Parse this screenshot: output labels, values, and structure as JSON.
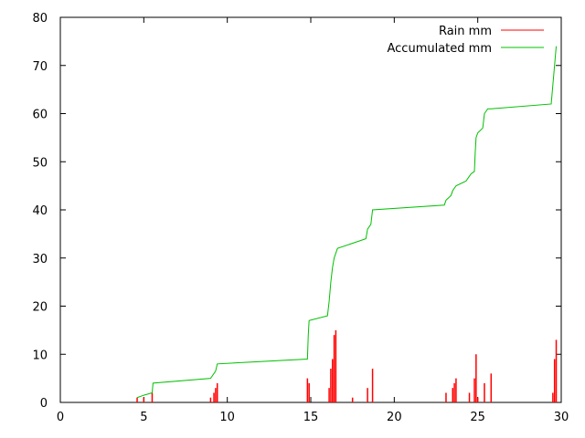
{
  "chart_data": {
    "type": "line",
    "xlim": [
      0,
      30
    ],
    "ylim": [
      0,
      80
    ],
    "x_ticks": [
      0,
      5,
      10,
      15,
      20,
      25,
      30
    ],
    "y_ticks": [
      0,
      10,
      20,
      30,
      40,
      50,
      60,
      70,
      80
    ],
    "legend_position": "top-right",
    "grid": false,
    "series": [
      {
        "name": "Rain mm",
        "style": "impulses",
        "color": "#ff0000",
        "x": [
          4.6,
          5.0,
          5.5,
          9.0,
          9.2,
          9.3,
          9.4,
          14.8,
          14.9,
          16.1,
          16.2,
          16.3,
          16.4,
          16.5,
          17.5,
          18.4,
          18.7,
          23.1,
          23.5,
          23.6,
          23.7,
          24.5,
          24.8,
          24.9,
          25.0,
          25.4,
          25.8,
          29.5,
          29.6,
          29.7
        ],
        "y": [
          1,
          1,
          2,
          1,
          2,
          3,
          4,
          5,
          4,
          3,
          7,
          9,
          14,
          15,
          1,
          3,
          7,
          2,
          3,
          4,
          5,
          2,
          5,
          10,
          1,
          4,
          6,
          2,
          9,
          13
        ]
      },
      {
        "name": "Accumulated mm",
        "style": "line",
        "color": "#00c000",
        "x": [
          4.6,
          5.0,
          5.5,
          5.55,
          9.0,
          9.3,
          9.4,
          14.8,
          14.85,
          14.9,
          16.0,
          16.1,
          16.2,
          16.3,
          16.4,
          16.5,
          16.6,
          18.3,
          18.4,
          18.6,
          18.7,
          23.0,
          23.1,
          23.4,
          23.5,
          23.7,
          24.3,
          24.5,
          24.6,
          24.8,
          24.85,
          24.9,
          25.0,
          25.3,
          25.4,
          25.6,
          25.8,
          29.4,
          29.5,
          29.6,
          29.7
        ],
        "y": [
          1,
          1.5,
          2,
          4,
          5,
          6.5,
          8,
          9,
          14,
          17,
          18,
          21,
          25,
          28,
          30,
          31,
          32,
          34,
          36,
          37,
          40,
          41,
          42,
          43,
          44,
          45,
          46,
          47,
          47.5,
          48,
          52,
          55,
          56,
          57,
          60,
          61,
          61,
          62,
          66,
          70,
          74
        ]
      }
    ]
  }
}
